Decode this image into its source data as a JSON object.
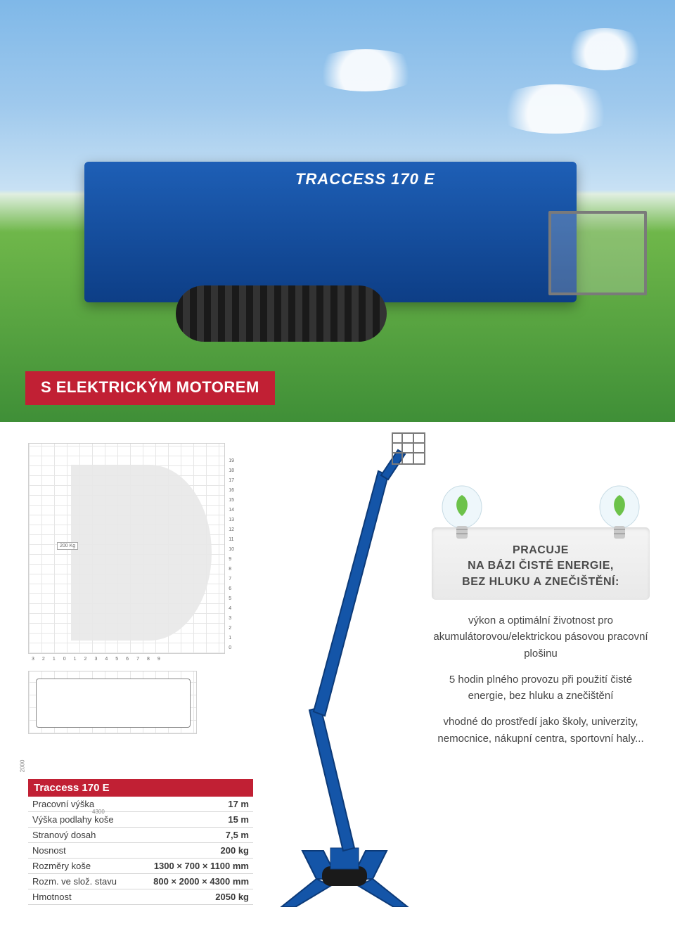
{
  "hero": {
    "machine_label": "TRACCESS 170 E",
    "banner": "S ELEKTRICKÝM MOTOREM",
    "banner_bg": "#c12034",
    "banner_text_color": "#ffffff",
    "machine_color": "#1455a8",
    "sky_top": "#7fb8e8",
    "grass": "#3f8f37"
  },
  "diagram": {
    "yticks": [
      "0",
      "1",
      "2",
      "3",
      "4",
      "5",
      "6",
      "7",
      "8",
      "9",
      "10",
      "11",
      "12",
      "13",
      "14",
      "15",
      "16",
      "17",
      "18",
      "19"
    ],
    "xticks": [
      "3",
      "2",
      "1",
      "0",
      "1",
      "2",
      "3",
      "4",
      "5",
      "6",
      "7",
      "8",
      "9"
    ],
    "side_dim": "2000",
    "bottom_dim": "4300",
    "capacity_badge": "200 Kg",
    "env_color": "#e8e8e8"
  },
  "spec": {
    "title": "Traccess 170 E",
    "title_bg": "#c12034",
    "rows": [
      {
        "label": "Pracovní výška",
        "value": "17 m"
      },
      {
        "label": "Výška podlahy koše",
        "value": "15 m"
      },
      {
        "label": "Stranový dosah",
        "value": "7,5 m"
      },
      {
        "label": "Nosnost",
        "value": "200 kg"
      },
      {
        "label": "Rozměry koše",
        "value": "1300 × 700 × 1100 mm"
      },
      {
        "label": "Rozm. ve slož. stavu",
        "value": "800 × 2000 × 4300 mm"
      },
      {
        "label": "Hmotnost",
        "value": "2050 kg"
      }
    ]
  },
  "callout": {
    "box_bg": "#efefef",
    "title_lines": [
      "PRACUJE",
      "NA BÁZI ČISTÉ ENERGIE,",
      "BEZ HLUKU A ZNEČIŠTĚNÍ:"
    ],
    "paragraphs": [
      "výkon a optimální životnost pro akumulátorovou/elektrickou pásovou pracovní plošinu",
      "5 hodin plného provozu při použití čisté energie, bez hluku a znečištění",
      "vhodné do prostředí jako školy, univerzity, nemocnice, nákupní centra, sportovní haly..."
    ],
    "bulb_leaf_color": "#6cc24a",
    "bulb_glass_color": "#e9f4f8"
  },
  "boom": {
    "color": "#1455a8",
    "base_color": "#1a1a1a"
  }
}
